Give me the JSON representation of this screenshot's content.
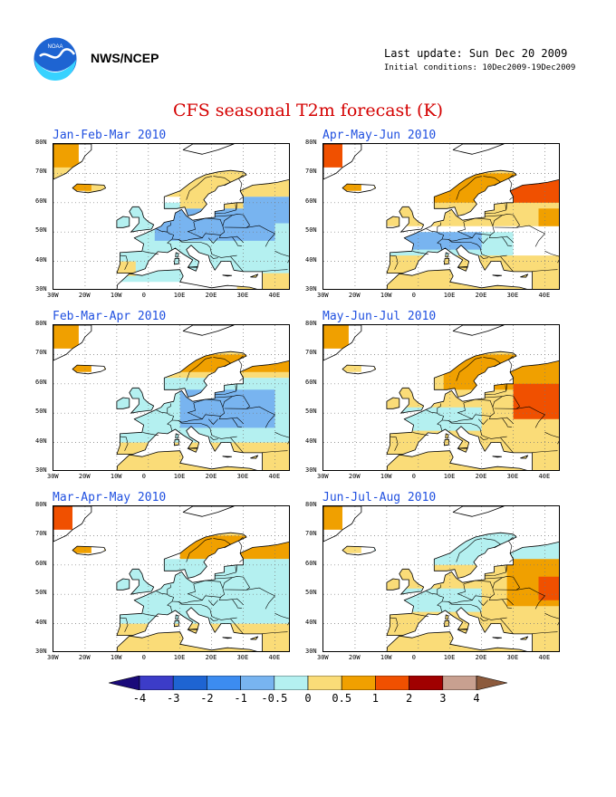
{
  "header": {
    "org": "NWS/NCEP",
    "last_update": "Last update: Sun Dec 20 2009",
    "initial_conditions": "Initial conditions: 10Dec2009-19Dec2009",
    "title": "CFS seasonal T2m forecast (K)"
  },
  "logo": {
    "icon": "noaa-logo-icon",
    "text": "NOAA"
  },
  "axes": {
    "lat_labels": [
      "80N",
      "70N",
      "60N",
      "50N",
      "40N",
      "30N"
    ],
    "lon_labels": [
      "30W",
      "20W",
      "10W",
      "0",
      "10E",
      "20E",
      "30E",
      "40E"
    ]
  },
  "panels": [
    {
      "title": "Jan-Feb-Mar 2010"
    },
    {
      "title": "Apr-May-Jun 2010"
    },
    {
      "title": "Feb-Mar-Apr 2010"
    },
    {
      "title": "May-Jun-Jul 2010"
    },
    {
      "title": "Mar-Apr-May 2010"
    },
    {
      "title": "Jun-Jul-Aug 2010"
    }
  ],
  "colorbar": {
    "labels": [
      "-4",
      "-3",
      "-2",
      "-1",
      "-0.5",
      "0",
      "0.5",
      "1",
      "2",
      "3",
      "4"
    ],
    "colors": [
      "#1a0a7a",
      "#3c3cc8",
      "#1e64d2",
      "#3c8cf0",
      "#78b4f0",
      "#b4f0f0",
      "#fadc78",
      "#f0a000",
      "#f05000",
      "#a00000",
      "#c8a090",
      "#8c5a3c"
    ]
  }
}
